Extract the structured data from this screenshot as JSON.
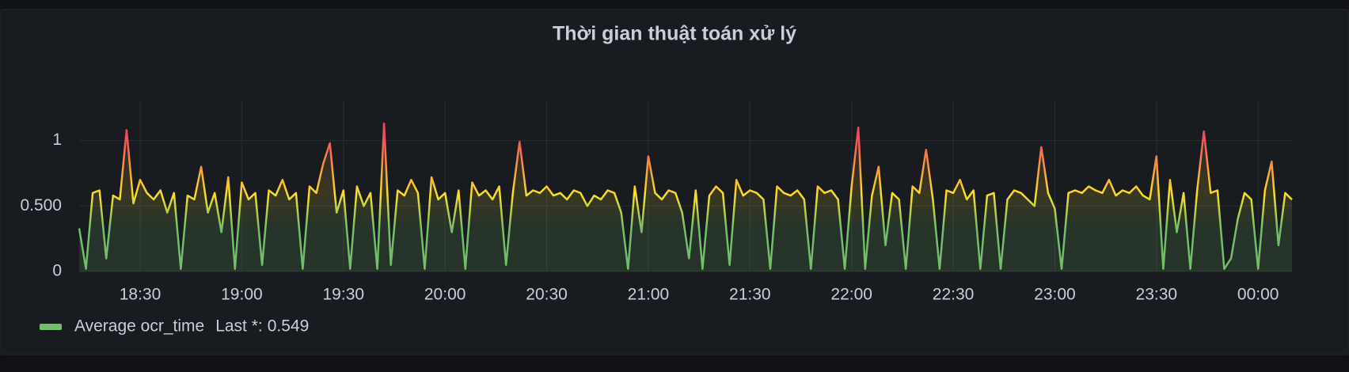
{
  "chart_data": {
    "type": "line",
    "title": "Thời gian thuật toán xử lý",
    "x": [
      "18:12",
      "18:14",
      "18:16",
      "18:18",
      "18:20",
      "18:22",
      "18:24",
      "18:26",
      "18:28",
      "18:30",
      "18:32",
      "18:34",
      "18:36",
      "18:38",
      "18:40",
      "18:42",
      "18:44",
      "18:46",
      "18:48",
      "18:50",
      "18:52",
      "18:54",
      "18:56",
      "18:58",
      "19:00",
      "19:02",
      "19:04",
      "19:06",
      "19:08",
      "19:10",
      "19:12",
      "19:14",
      "19:16",
      "19:18",
      "19:20",
      "19:22",
      "19:24",
      "19:26",
      "19:28",
      "19:30",
      "19:32",
      "19:34",
      "19:36",
      "19:38",
      "19:40",
      "19:42",
      "19:44",
      "19:46",
      "19:48",
      "19:50",
      "19:52",
      "19:54",
      "19:56",
      "19:58",
      "20:00",
      "20:02",
      "20:04",
      "20:06",
      "20:08",
      "20:10",
      "20:12",
      "20:14",
      "20:16",
      "20:18",
      "20:20",
      "20:22",
      "20:24",
      "20:26",
      "20:28",
      "20:30",
      "20:32",
      "20:34",
      "20:36",
      "20:38",
      "20:40",
      "20:42",
      "20:44",
      "20:46",
      "20:48",
      "20:50",
      "20:52",
      "20:54",
      "20:56",
      "20:58",
      "21:00",
      "21:02",
      "21:04",
      "21:06",
      "21:08",
      "21:10",
      "21:12",
      "21:14",
      "21:16",
      "21:18",
      "21:20",
      "21:22",
      "21:24",
      "21:26",
      "21:28",
      "21:30",
      "21:32",
      "21:34",
      "21:36",
      "21:38",
      "21:40",
      "21:42",
      "21:44",
      "21:46",
      "21:48",
      "21:50",
      "21:52",
      "21:54",
      "21:56",
      "21:58",
      "22:00",
      "22:02",
      "22:04",
      "22:06",
      "22:08",
      "22:10",
      "22:12",
      "22:14",
      "22:16",
      "22:18",
      "22:20",
      "22:22",
      "22:24",
      "22:26",
      "22:28",
      "22:30",
      "22:32",
      "22:34",
      "22:36",
      "22:38",
      "22:40",
      "22:42",
      "22:44",
      "22:46",
      "22:48",
      "22:50",
      "22:52",
      "22:54",
      "22:56",
      "22:58",
      "23:00",
      "23:02",
      "23:04",
      "23:06",
      "23:08",
      "23:10",
      "23:12",
      "23:14",
      "23:16",
      "23:18",
      "23:20",
      "23:22",
      "23:24",
      "23:26",
      "23:28",
      "23:30",
      "23:32",
      "23:34",
      "23:36",
      "23:38",
      "23:40",
      "23:42",
      "23:44",
      "23:46",
      "23:48",
      "23:50",
      "23:52",
      "23:54",
      "23:56",
      "23:58",
      "00:00",
      "00:02",
      "00:04",
      "00:06",
      "00:08",
      "00:10"
    ],
    "series": [
      {
        "name": "Average ocr_time",
        "color": "#73bf69",
        "values": [
          0.33,
          0.02,
          0.6,
          0.62,
          0.1,
          0.58,
          0.55,
          1.08,
          0.52,
          0.7,
          0.6,
          0.55,
          0.62,
          0.45,
          0.6,
          0.02,
          0.58,
          0.55,
          0.8,
          0.45,
          0.6,
          0.3,
          0.72,
          0.02,
          0.68,
          0.55,
          0.6,
          0.05,
          0.62,
          0.58,
          0.7,
          0.55,
          0.6,
          0.02,
          0.65,
          0.6,
          0.82,
          0.98,
          0.45,
          0.62,
          0.02,
          0.65,
          0.5,
          0.6,
          0.02,
          1.13,
          0.05,
          0.62,
          0.58,
          0.7,
          0.6,
          0.02,
          0.72,
          0.55,
          0.6,
          0.3,
          0.62,
          0.02,
          0.68,
          0.58,
          0.62,
          0.55,
          0.65,
          0.05,
          0.6,
          0.99,
          0.58,
          0.62,
          0.6,
          0.65,
          0.58,
          0.6,
          0.55,
          0.62,
          0.6,
          0.5,
          0.58,
          0.55,
          0.62,
          0.6,
          0.45,
          0.02,
          0.65,
          0.3,
          0.88,
          0.6,
          0.55,
          0.62,
          0.6,
          0.45,
          0.1,
          0.62,
          0.02,
          0.58,
          0.65,
          0.6,
          0.05,
          0.7,
          0.58,
          0.62,
          0.6,
          0.55,
          0.02,
          0.65,
          0.6,
          0.58,
          0.62,
          0.55,
          0.02,
          0.65,
          0.6,
          0.62,
          0.55,
          0.02,
          0.65,
          1.1,
          0.02,
          0.58,
          0.8,
          0.2,
          0.6,
          0.55,
          0.02,
          0.65,
          0.6,
          0.93,
          0.55,
          0.02,
          0.62,
          0.6,
          0.7,
          0.55,
          0.62,
          0.02,
          0.58,
          0.6,
          0.02,
          0.55,
          0.62,
          0.6,
          0.55,
          0.5,
          0.95,
          0.6,
          0.48,
          0.02,
          0.6,
          0.62,
          0.6,
          0.65,
          0.62,
          0.6,
          0.7,
          0.58,
          0.62,
          0.6,
          0.65,
          0.58,
          0.55,
          0.88,
          0.02,
          0.7,
          0.3,
          0.6,
          0.02,
          0.62,
          1.07,
          0.6,
          0.62,
          0.02,
          0.1,
          0.4,
          0.6,
          0.55,
          0.02,
          0.62,
          0.84,
          0.2,
          0.6,
          0.549
        ]
      }
    ],
    "xlim": [
      "18:12",
      "00:10"
    ],
    "xticks": [
      "18:30",
      "19:00",
      "19:30",
      "20:00",
      "20:30",
      "21:00",
      "21:30",
      "22:00",
      "22:30",
      "23:00",
      "23:30",
      "00:00"
    ],
    "ylim": [
      0,
      1.3
    ],
    "yticks": [
      0,
      {
        "value": 0.5,
        "label": "0.500"
      },
      1
    ],
    "grid": true,
    "gradient_colors": [
      "#73bf69",
      "#fade2a",
      "#f2495c"
    ],
    "legend_stat_label": "Last *:",
    "legend_stat_value": 0.549
  }
}
